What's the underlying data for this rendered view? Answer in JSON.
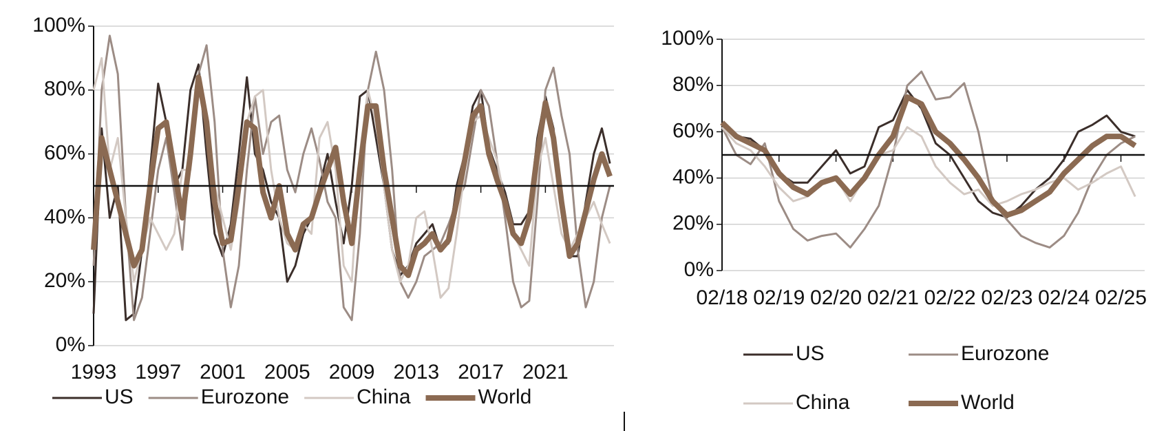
{
  "chart_data": [
    {
      "type": "line",
      "x": [
        1993,
        1993.5,
        1994,
        1994.5,
        1995,
        1995.5,
        1996,
        1996.5,
        1997,
        1997.5,
        1998,
        1998.5,
        1999,
        1999.5,
        2000,
        2000.5,
        2001,
        2001.5,
        2002,
        2002.5,
        2003,
        2003.5,
        2004,
        2004.5,
        2005,
        2005.5,
        2006,
        2006.5,
        2007,
        2007.5,
        2008,
        2008.5,
        2009,
        2009.5,
        2010,
        2010.5,
        2011,
        2011.5,
        2012,
        2012.5,
        2013,
        2013.5,
        2014,
        2014.5,
        2015,
        2015.5,
        2016,
        2016.5,
        2017,
        2017.5,
        2018,
        2018.5,
        2019,
        2019.5,
        2020,
        2020.5,
        2021,
        2021.5,
        2022,
        2022.5,
        2023,
        2023.5,
        2024,
        2024.5,
        2025
      ],
      "series": [
        {
          "name": "US",
          "color": "#3b2e2a",
          "line_width": 3,
          "values": [
            10,
            68,
            40,
            50,
            8,
            10,
            30,
            55,
            82,
            70,
            50,
            55,
            80,
            88,
            60,
            35,
            28,
            38,
            60,
            84,
            60,
            55,
            45,
            40,
            20,
            25,
            35,
            40,
            50,
            60,
            45,
            32,
            50,
            78,
            80,
            65,
            50,
            30,
            22,
            25,
            32,
            35,
            38,
            30,
            32,
            50,
            60,
            75,
            80,
            62,
            55,
            48,
            38,
            38,
            42,
            65,
            78,
            68,
            45,
            28,
            28,
            45,
            60,
            68,
            57
          ]
        },
        {
          "name": "Eurozone",
          "color": "#9c8c85",
          "line_width": 3,
          "values": [
            25,
            80,
            97,
            85,
            40,
            8,
            15,
            35,
            55,
            65,
            48,
            30,
            62,
            85,
            94,
            70,
            30,
            12,
            25,
            55,
            78,
            60,
            70,
            72,
            55,
            48,
            60,
            68,
            58,
            45,
            40,
            12,
            8,
            35,
            80,
            92,
            80,
            55,
            20,
            15,
            20,
            28,
            30,
            32,
            38,
            45,
            50,
            65,
            80,
            75,
            58,
            40,
            20,
            12,
            14,
            45,
            80,
            87,
            72,
            60,
            30,
            12,
            20,
            40,
            50
          ]
        },
        {
          "name": "China",
          "color": "#d3c9c3",
          "line_width": 3,
          "values": [
            80,
            90,
            55,
            65,
            40,
            20,
            30,
            40,
            35,
            30,
            35,
            55,
            55,
            80,
            70,
            50,
            40,
            30,
            45,
            70,
            78,
            80,
            55,
            40,
            32,
            30,
            38,
            35,
            65,
            70,
            55,
            25,
            20,
            60,
            80,
            70,
            50,
            30,
            20,
            25,
            40,
            42,
            30,
            15,
            18,
            35,
            55,
            70,
            72,
            65,
            58,
            45,
            35,
            30,
            25,
            55,
            65,
            50,
            35,
            30,
            35,
            40,
            45,
            38,
            32
          ]
        },
        {
          "name": "World",
          "color": "#8b6a52",
          "line_width": 8,
          "values": [
            30,
            65,
            55,
            45,
            35,
            25,
            30,
            50,
            68,
            70,
            55,
            40,
            60,
            84,
            70,
            45,
            32,
            33,
            50,
            70,
            68,
            48,
            40,
            50,
            35,
            30,
            38,
            40,
            48,
            55,
            62,
            45,
            32,
            55,
            75,
            75,
            55,
            40,
            25,
            22,
            30,
            32,
            35,
            30,
            33,
            45,
            58,
            72,
            75,
            60,
            52,
            45,
            35,
            32,
            40,
            60,
            76,
            65,
            45,
            28,
            32,
            42,
            52,
            60,
            53
          ]
        }
      ],
      "xlim": [
        1993,
        2025.25
      ],
      "xticks": [
        1993,
        1997,
        2001,
        2005,
        2009,
        2013,
        2017,
        2021
      ],
      "ylim": [
        0,
        100
      ],
      "yticks": [
        {
          "value": 0,
          "label": "0%"
        },
        {
          "value": 20,
          "label": "20%"
        },
        {
          "value": 40,
          "label": "40%"
        },
        {
          "value": 60,
          "label": "60%"
        },
        {
          "value": 80,
          "label": "80%"
        },
        {
          "value": 100,
          "label": "100%"
        }
      ],
      "hline": 50,
      "grid": true,
      "legend": "bottom",
      "legend_columns": 4
    },
    {
      "type": "line",
      "x": [
        "2018-02",
        "2018-05",
        "2018-08",
        "2018-11",
        "2019-02",
        "2019-05",
        "2019-08",
        "2019-11",
        "2020-02",
        "2020-05",
        "2020-08",
        "2020-11",
        "2021-02",
        "2021-05",
        "2021-08",
        "2021-11",
        "2022-02",
        "2022-05",
        "2022-08",
        "2022-11",
        "2023-02",
        "2023-05",
        "2023-08",
        "2023-11",
        "2024-02",
        "2024-05",
        "2024-08",
        "2024-11",
        "2025-02",
        "2025-05"
      ],
      "series": [
        {
          "name": "US",
          "color": "#3b2e2a",
          "line_width": 3,
          "values": [
            64,
            58,
            57,
            52,
            42,
            38,
            38,
            45,
            52,
            42,
            45,
            62,
            65,
            78,
            70,
            55,
            50,
            40,
            30,
            25,
            23,
            28,
            35,
            40,
            48,
            60,
            63,
            67,
            60,
            58
          ]
        },
        {
          "name": "Eurozone",
          "color": "#9c8c85",
          "line_width": 3,
          "values": [
            62,
            50,
            46,
            55,
            30,
            18,
            13,
            15,
            16,
            10,
            18,
            28,
            50,
            80,
            86,
            74,
            75,
            81,
            60,
            30,
            22,
            15,
            12,
            10,
            15,
            25,
            40,
            50,
            55,
            58
          ]
        },
        {
          "name": "China",
          "color": "#d3c9c3",
          "line_width": 3,
          "values": [
            62,
            55,
            52,
            45,
            36,
            30,
            32,
            38,
            40,
            30,
            40,
            50,
            52,
            62,
            58,
            45,
            38,
            33,
            35,
            28,
            30,
            33,
            35,
            38,
            40,
            35,
            38,
            42,
            45,
            32
          ]
        },
        {
          "name": "World",
          "color": "#8b6a52",
          "line_width": 8,
          "values": [
            64,
            58,
            55,
            52,
            42,
            36,
            33,
            38,
            40,
            33,
            40,
            50,
            58,
            75,
            72,
            60,
            55,
            48,
            40,
            30,
            24,
            26,
            30,
            34,
            42,
            48,
            54,
            58,
            58,
            54
          ]
        }
      ],
      "xlim": [
        "2018-02",
        "2025-07"
      ],
      "xticks": [
        {
          "value": "2018-02",
          "label": "02/18"
        },
        {
          "value": "2019-02",
          "label": "02/19"
        },
        {
          "value": "2020-02",
          "label": "02/20"
        },
        {
          "value": "2021-02",
          "label": "02/21"
        },
        {
          "value": "2022-02",
          "label": "02/22"
        },
        {
          "value": "2023-02",
          "label": "02/23"
        },
        {
          "value": "2024-02",
          "label": "02/24"
        },
        {
          "value": "2025-02",
          "label": "02/25"
        }
      ],
      "ylim": [
        0,
        100
      ],
      "yticks": [
        {
          "value": 0,
          "label": "0%"
        },
        {
          "value": 20,
          "label": "20%"
        },
        {
          "value": 40,
          "label": "40%"
        },
        {
          "value": 60,
          "label": "60%"
        },
        {
          "value": 80,
          "label": "80%"
        },
        {
          "value": 100,
          "label": "100%"
        }
      ],
      "hline": 50,
      "grid": true,
      "legend": "bottom",
      "legend_columns": 2
    }
  ]
}
